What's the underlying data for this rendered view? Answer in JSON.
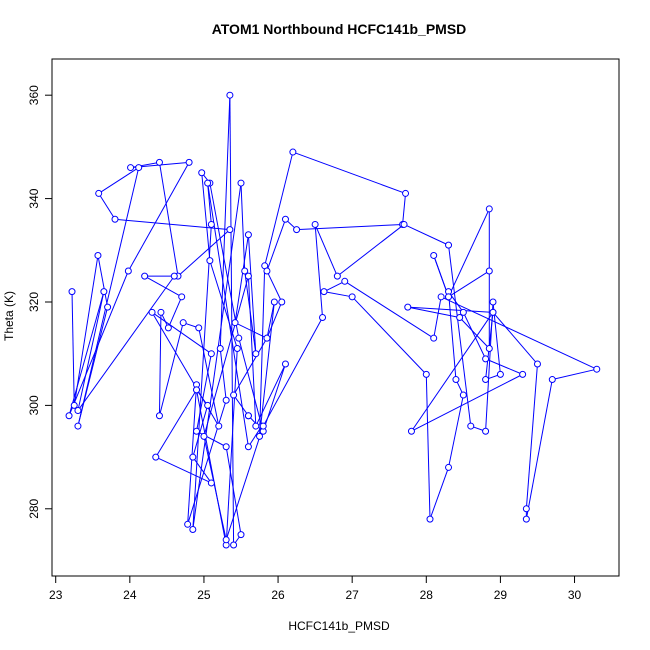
{
  "chart_data": {
    "type": "line",
    "title": "ATOM1 Northbound HCFC141b_PMSD",
    "xlabel": "HCFC141b_PMSD",
    "ylabel": "Theta (K)",
    "xlim": [
      22.95,
      30.6
    ],
    "ylim": [
      267,
      367
    ],
    "xticks": [
      23,
      24,
      25,
      26,
      27,
      28,
      29,
      30
    ],
    "yticks": [
      280,
      300,
      320,
      340,
      360
    ],
    "grid": false,
    "color": "#0000ff",
    "marker": "open-circle",
    "series": [
      {
        "points": [
          [
            23.22,
            322
          ],
          [
            23.25,
            300
          ],
          [
            23.57,
            329
          ],
          [
            23.7,
            319
          ],
          [
            23.3,
            296
          ],
          [
            24.12,
            346
          ],
          [
            23.58,
            341
          ],
          [
            23.8,
            336
          ],
          [
            25.35,
            334
          ],
          [
            24.65,
            325
          ],
          [
            24.4,
            347
          ],
          [
            24.01,
            346
          ],
          [
            24.8,
            347
          ],
          [
            23.98,
            326
          ],
          [
            23.18,
            298
          ],
          [
            23.65,
            322
          ],
          [
            23.3,
            299
          ],
          [
            24.6,
            325
          ],
          [
            24.2,
            325
          ],
          [
            24.7,
            321
          ],
          [
            24.52,
            315
          ],
          [
            24.42,
            318
          ],
          [
            24.4,
            298
          ],
          [
            24.72,
            316
          ],
          [
            24.93,
            315
          ],
          [
            25.2,
            296
          ],
          [
            24.3,
            318
          ],
          [
            25.1,
            310
          ],
          [
            24.9,
            295
          ],
          [
            25.3,
            292
          ],
          [
            25.5,
            275
          ],
          [
            25.4,
            273
          ],
          [
            25.35,
            360
          ],
          [
            25.22,
            311
          ],
          [
            25.3,
            301
          ],
          [
            24.78,
            277
          ],
          [
            24.9,
            304
          ],
          [
            24.9,
            303
          ],
          [
            25.05,
            300
          ],
          [
            24.85,
            290
          ],
          [
            25.1,
            285
          ],
          [
            24.35,
            290
          ],
          [
            24.9,
            303
          ],
          [
            25.3,
            273
          ],
          [
            25.45,
            311
          ],
          [
            25.08,
            328
          ],
          [
            24.97,
            345
          ],
          [
            25.08,
            343
          ],
          [
            25.47,
            313
          ],
          [
            25.78,
            296
          ],
          [
            25.6,
            292
          ],
          [
            25.05,
            343
          ],
          [
            25.1,
            335
          ],
          [
            24.85,
            276
          ],
          [
            25.5,
            343
          ],
          [
            25.55,
            326
          ],
          [
            25.7,
            310
          ],
          [
            25.6,
            333
          ],
          [
            25.42,
            316
          ],
          [
            25.85,
            313
          ],
          [
            25.95,
            320
          ],
          [
            25.75,
            294
          ],
          [
            25.82,
            327
          ],
          [
            26.2,
            349
          ],
          [
            27.72,
            341
          ],
          [
            27.68,
            335
          ],
          [
            26.25,
            334
          ],
          [
            26.1,
            336
          ],
          [
            25.85,
            326
          ],
          [
            26.05,
            320
          ],
          [
            25.85,
            313
          ],
          [
            25.4,
            302
          ],
          [
            25.6,
            298
          ],
          [
            25.6,
            298
          ],
          [
            25.8,
            295
          ],
          [
            26.1,
            308
          ],
          [
            25.7,
            296
          ],
          [
            25.6,
            325
          ],
          [
            25.0,
            294
          ],
          [
            25.3,
            274
          ],
          [
            25.8,
            296
          ],
          [
            26.6,
            317
          ],
          [
            26.5,
            335
          ],
          [
            26.8,
            325
          ],
          [
            27.7,
            335
          ],
          [
            28.3,
            331
          ],
          [
            28.6,
            296
          ],
          [
            28.8,
            295
          ],
          [
            28.9,
            320
          ],
          [
            29.0,
            306
          ],
          [
            28.8,
            305
          ],
          [
            28.9,
            318
          ],
          [
            29.5,
            308
          ],
          [
            29.35,
            280
          ],
          [
            29.35,
            278
          ],
          [
            29.7,
            305
          ],
          [
            30.3,
            307
          ],
          [
            28.2,
            321
          ],
          [
            28.1,
            313
          ],
          [
            26.9,
            324
          ],
          [
            26.62,
            322
          ],
          [
            27.0,
            321
          ],
          [
            28.0,
            306
          ],
          [
            28.05,
            278
          ],
          [
            28.3,
            288
          ],
          [
            28.5,
            302
          ],
          [
            28.4,
            305
          ],
          [
            28.3,
            322
          ],
          [
            28.5,
            318
          ],
          [
            28.8,
            309
          ],
          [
            29.3,
            306
          ],
          [
            27.8,
            295
          ],
          [
            28.9,
            318
          ],
          [
            27.75,
            319
          ],
          [
            28.45,
            317
          ],
          [
            28.85,
            311
          ],
          [
            28.85,
            338
          ],
          [
            28.3,
            321
          ],
          [
            28.1,
            329
          ],
          [
            28.3,
            321
          ],
          [
            28.85,
            326
          ]
        ]
      }
    ]
  }
}
